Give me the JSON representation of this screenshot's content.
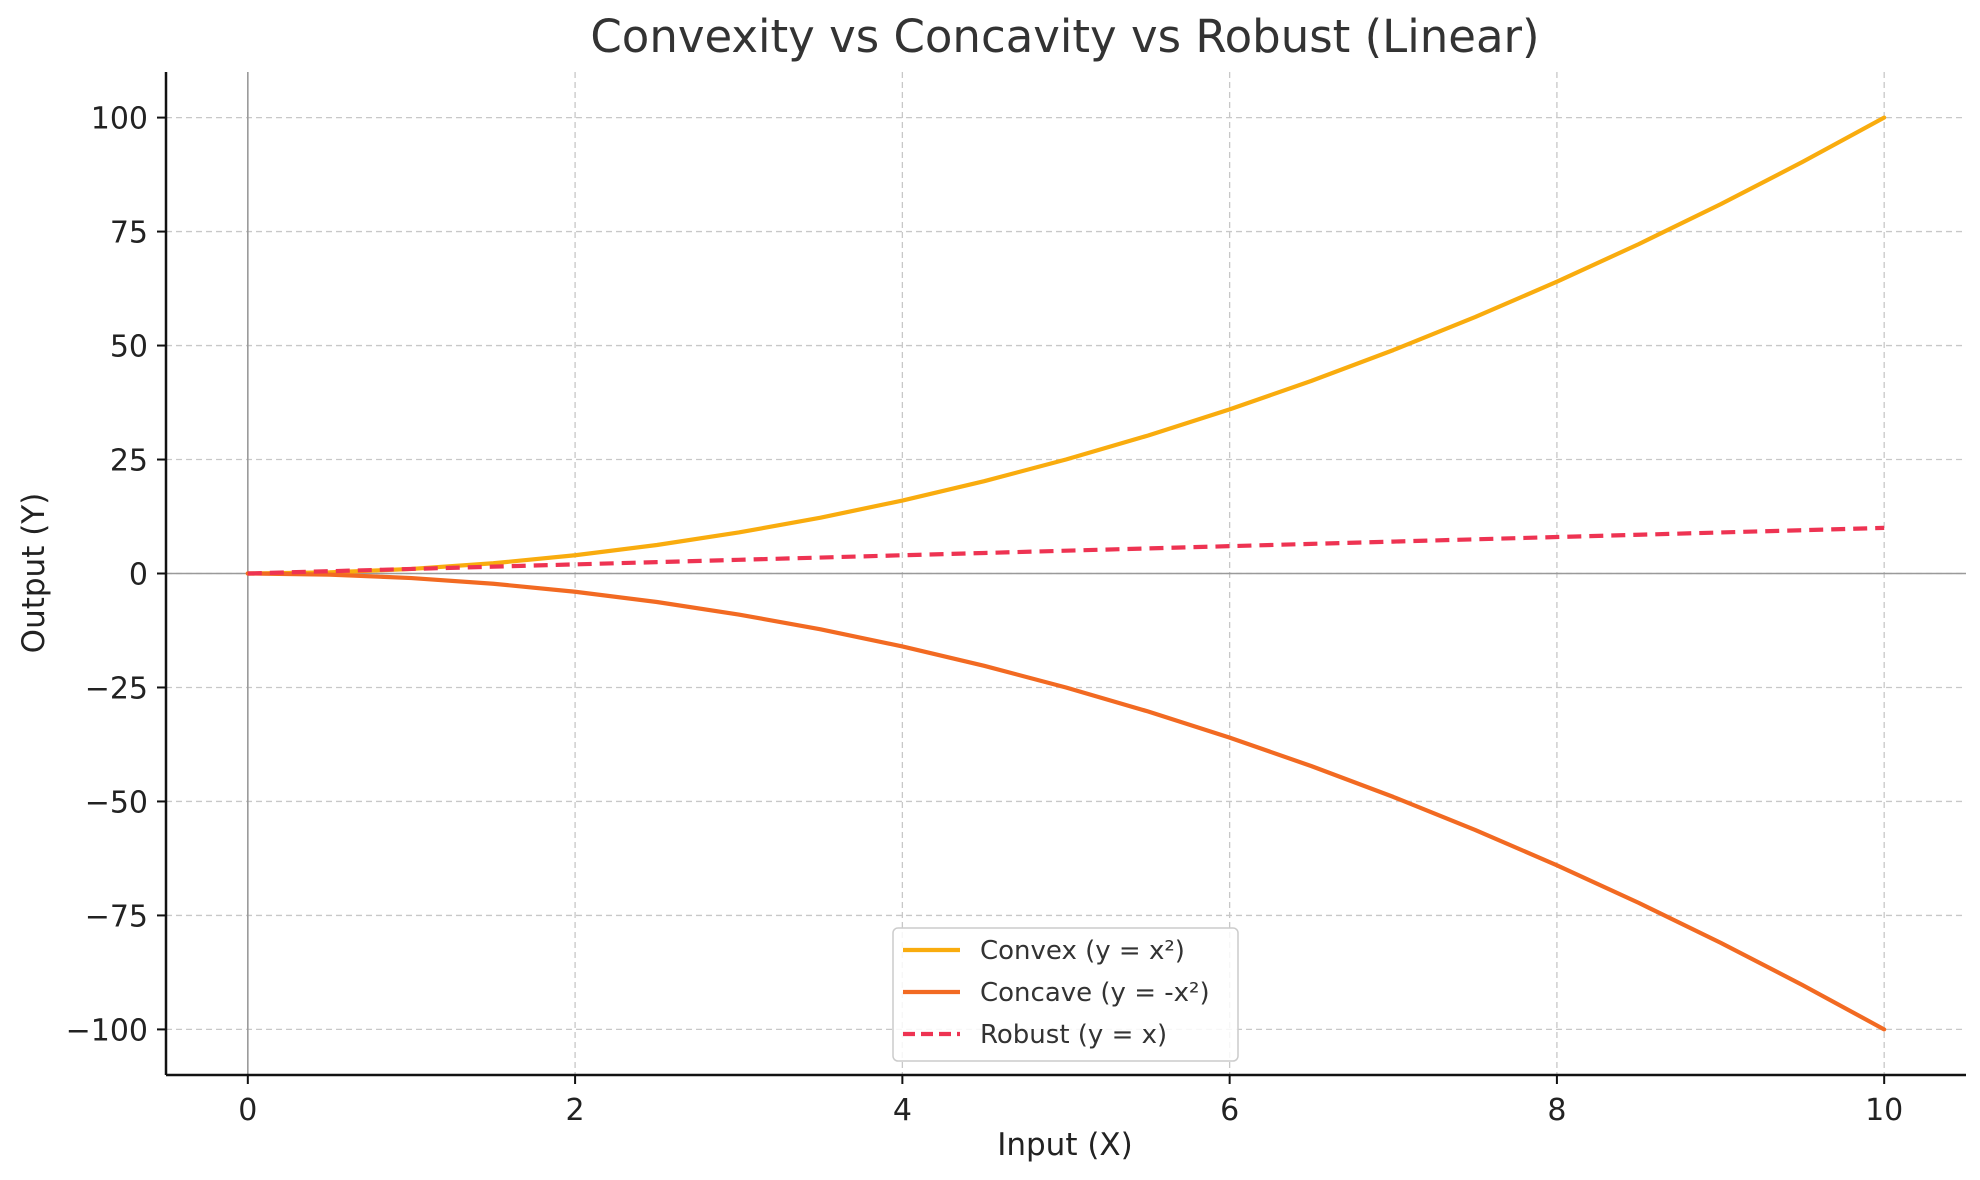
{
  "chart_data": {
    "type": "line",
    "title": "Convexity vs Concavity vs Robust (Linear)",
    "xlabel": "Input (X)",
    "ylabel": "Output (Y)",
    "xlim": [
      -0.5,
      10.5
    ],
    "ylim": [
      -110,
      110
    ],
    "x_ticks": [
      0,
      2,
      4,
      6,
      8,
      10
    ],
    "y_ticks": [
      100,
      75,
      50,
      25,
      0,
      -25,
      -50,
      -75,
      -100
    ],
    "x_tick_labels": [
      "0",
      "2",
      "4",
      "6",
      "8",
      "10"
    ],
    "y_tick_labels": [
      "100",
      "75",
      "50",
      "25",
      "0",
      "−25",
      "−50",
      "−75",
      "−100"
    ],
    "grid": true,
    "zero_lines": true,
    "legend_position": "bottom-center",
    "x": [
      0,
      0.5,
      1,
      1.5,
      2,
      2.5,
      3,
      3.5,
      4,
      4.5,
      5,
      5.5,
      6,
      6.5,
      7,
      7.5,
      8,
      8.5,
      9,
      9.5,
      10
    ],
    "series": [
      {
        "name": "Convex (y = x²)",
        "color": "#F9AC0E",
        "dash": "solid",
        "values": [
          0,
          0.25,
          1,
          2.25,
          4,
          6.25,
          9,
          12.25,
          16,
          20.25,
          25,
          30.25,
          36,
          42.25,
          49,
          56.25,
          64,
          72.25,
          81,
          90.25,
          100
        ]
      },
      {
        "name": "Concave (y = -x²)",
        "color": "#F26A22",
        "dash": "solid",
        "values": [
          0,
          -0.25,
          -1,
          -2.25,
          -4,
          -6.25,
          -9,
          -12.25,
          -16,
          -20.25,
          -25,
          -30.25,
          -36,
          -42.25,
          -49,
          -56.25,
          -64,
          -72.25,
          -81,
          -90.25,
          -100
        ]
      },
      {
        "name": "Robust (y = x)",
        "color": "#EE3352",
        "dash": "dashed",
        "values": [
          0,
          0.5,
          1,
          1.5,
          2,
          2.5,
          3,
          3.5,
          4,
          4.5,
          5,
          5.5,
          6,
          6.5,
          7,
          7.5,
          8,
          8.5,
          9,
          9.5,
          10
        ]
      }
    ]
  }
}
